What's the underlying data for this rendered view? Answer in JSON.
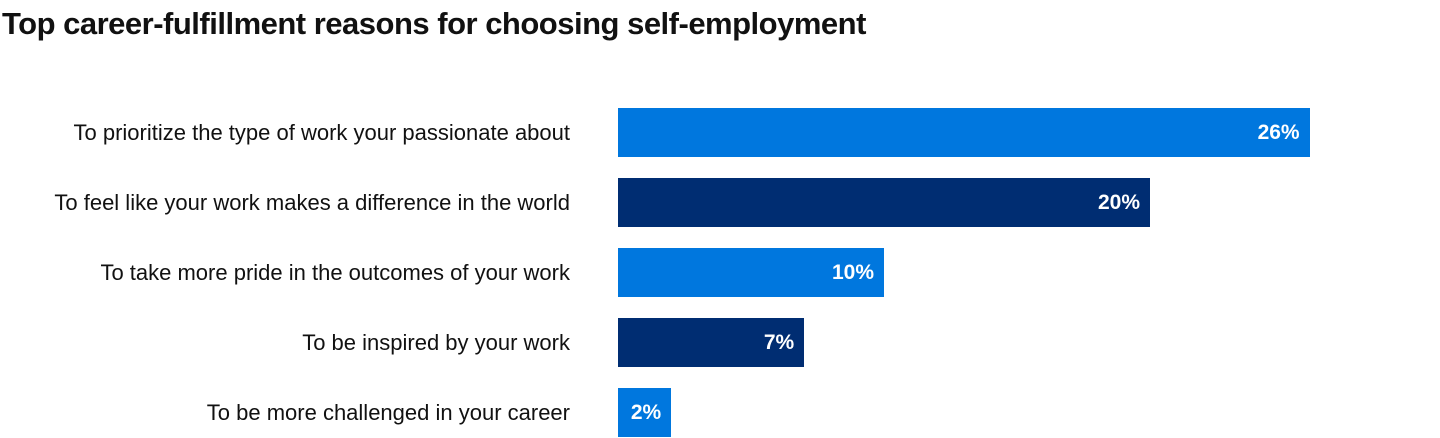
{
  "chart_data": {
    "type": "bar",
    "orientation": "horizontal",
    "title": "Top career-fulfillment reasons for choosing self-employment",
    "categories": [
      "To prioritize the type of work your passionate about",
      "To feel like your work makes a difference in the world",
      "To take more pride in the outcomes of your work",
      "To be inspired by your work",
      "To be more challenged in your career"
    ],
    "values": [
      26,
      20,
      10,
      7,
      2
    ],
    "value_labels": [
      "26%",
      "20%",
      "10%",
      "7%",
      "2%"
    ],
    "colors": [
      "#0077de",
      "#002d72",
      "#0077de",
      "#002d72",
      "#0077de"
    ],
    "xlim": [
      0,
      26
    ],
    "grid": false,
    "legend": "none"
  }
}
